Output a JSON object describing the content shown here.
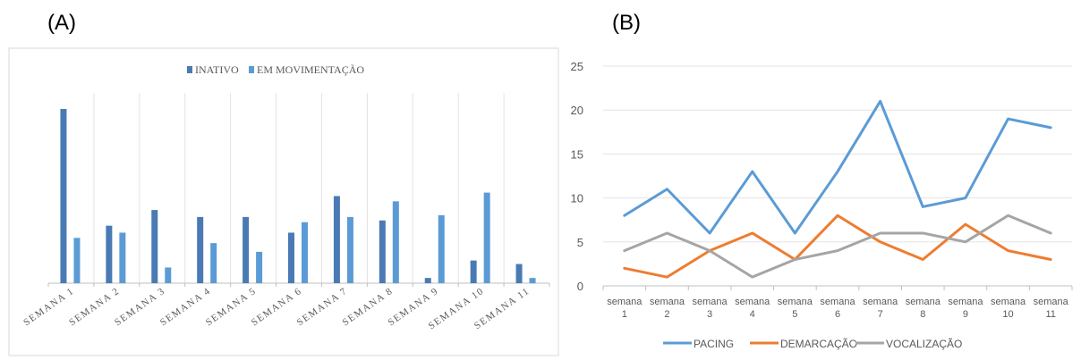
{
  "panel_labels": {
    "a": "(A)",
    "b": "(B)"
  },
  "chart_data": [
    {
      "type": "bar",
      "categories": [
        "SEMANA 1",
        "SEMANA 2",
        "SEMANA 3",
        "SEMANA 4",
        "SEMANA 5",
        "SEMANA 6",
        "SEMANA 7",
        "SEMANA 8",
        "SEMANA 9",
        "SEMANA 10",
        "SEMANA 11"
      ],
      "series": [
        {
          "name": "INATIVO",
          "color": "#4a7ab4",
          "values": [
            100,
            33,
            42,
            38,
            38,
            29,
            50,
            36,
            3,
            13,
            11
          ]
        },
        {
          "name": "EM MOVIMENTAÇÃO",
          "color": "#5b9bd5",
          "values": [
            26,
            29,
            9,
            23,
            18,
            35,
            38,
            47,
            39,
            52,
            3
          ]
        }
      ],
      "title": "",
      "xlabel": "",
      "ylabel": "",
      "legend": "top-center",
      "grid": "vertical"
    },
    {
      "type": "line",
      "categories": [
        "semana 1",
        "semana 2",
        "semana 3",
        "semana 4",
        "semana 5",
        "semana 6",
        "semana 7",
        "semana 8",
        "semana 9",
        "semana 10",
        "semana 11"
      ],
      "series": [
        {
          "name": "PACING",
          "color": "#5b9bd5",
          "values": [
            8,
            11,
            6,
            13,
            6,
            13,
            21,
            9,
            10,
            19,
            18
          ]
        },
        {
          "name": "DEMARCAÇÃO",
          "color": "#ed7d31",
          "values": [
            2,
            1,
            4,
            6,
            3,
            8,
            5,
            3,
            7,
            4,
            3
          ]
        },
        {
          "name": "VOCALIZAÇÃO",
          "color": "#a5a5a5",
          "values": [
            4,
            6,
            4,
            1,
            3,
            4,
            6,
            6,
            5,
            8,
            6
          ]
        }
      ],
      "yticks": [
        "0",
        "5",
        "10",
        "15",
        "20",
        "25"
      ],
      "ylim": [
        0,
        25
      ],
      "title": "",
      "xlabel": "",
      "ylabel": "",
      "legend": "bottom-center",
      "grid": "horizontal"
    }
  ]
}
